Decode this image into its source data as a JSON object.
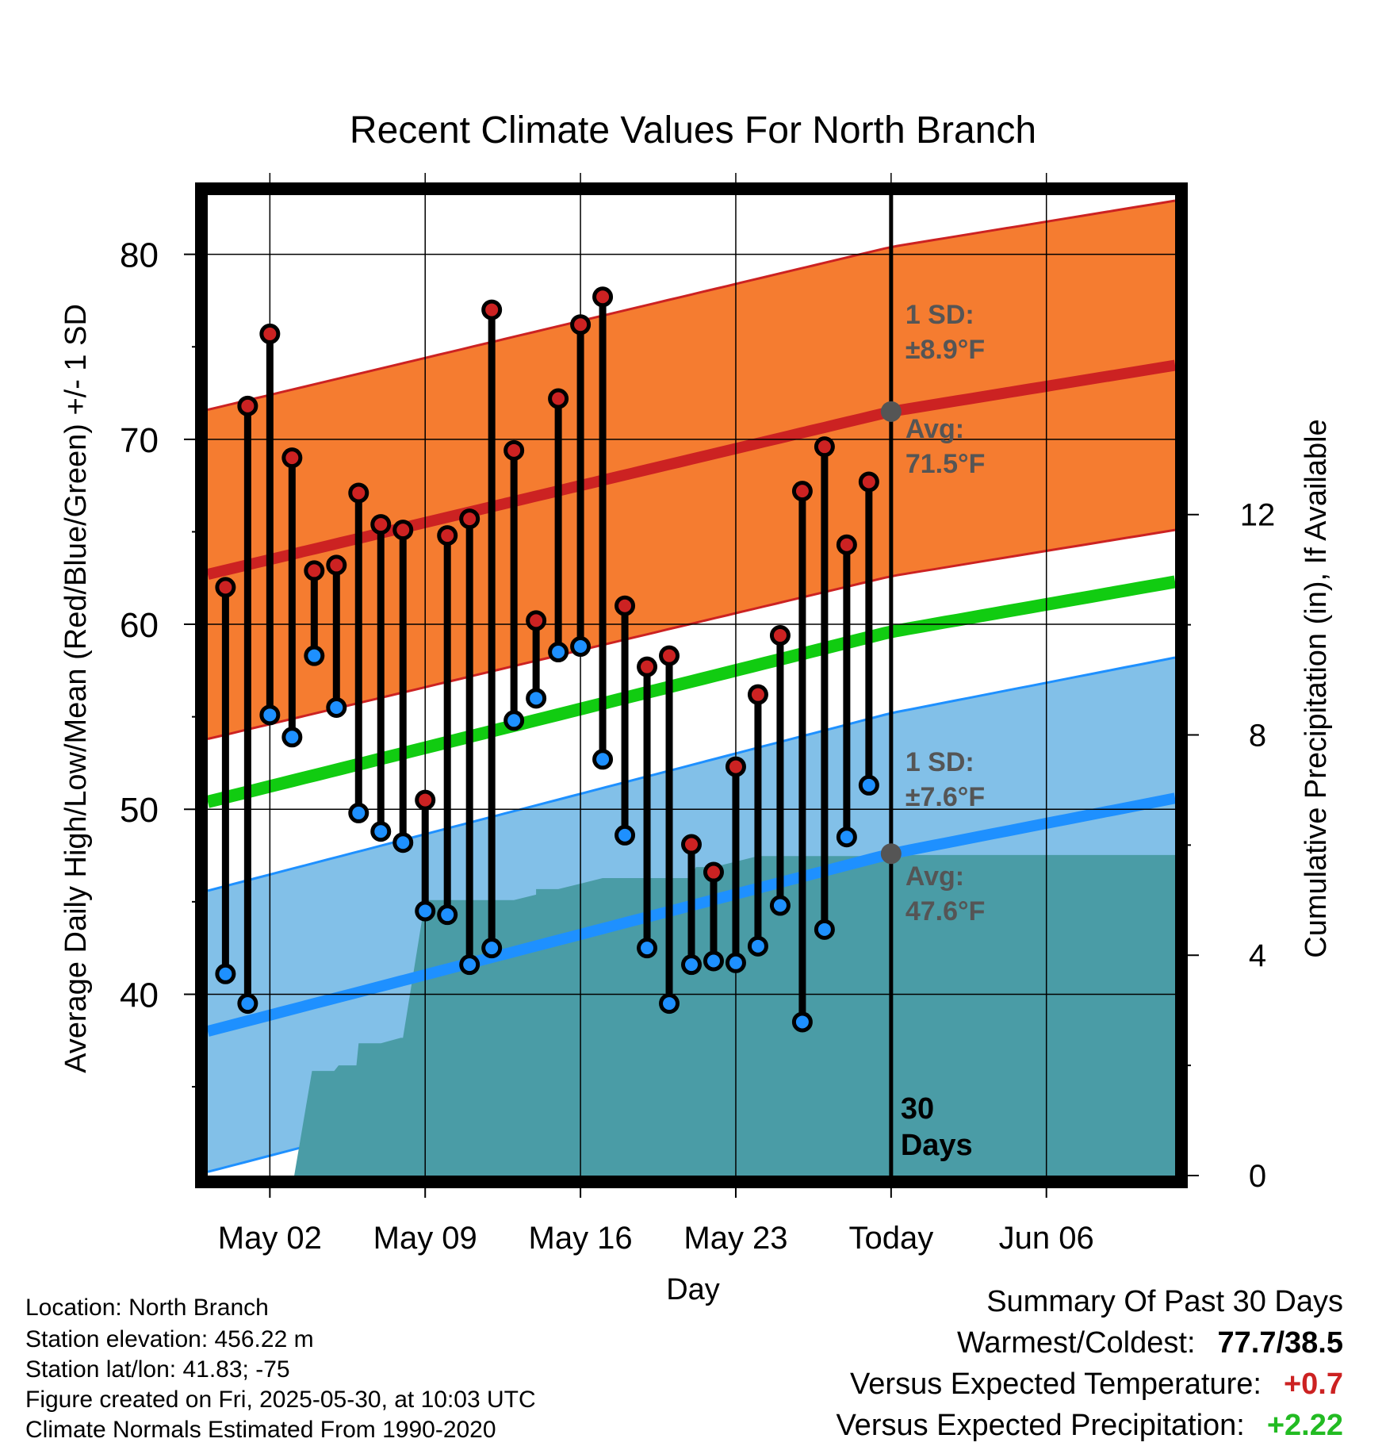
{
  "chart_data": {
    "type": "line",
    "title": "Recent Climate Values For North Branch",
    "xlabel": "Day",
    "ylabel": "Average Daily High/Low/Mean (Red/Blue/Green) +/- 1 SD",
    "y2label": "Cumulative Precipitation (in), If Available",
    "xlim": [
      -2.8,
      40.8
    ],
    "ylim": [
      30.2,
      83.2
    ],
    "y2lim": [
      0,
      17.8
    ],
    "x_ticks": [
      {
        "x": 0,
        "label": "May 02"
      },
      {
        "x": 7,
        "label": "May 09"
      },
      {
        "x": 14,
        "label": "May 16"
      },
      {
        "x": 21,
        "label": "May 23"
      },
      {
        "x": 28,
        "label": "Today"
      },
      {
        "x": 35,
        "label": "Jun 06"
      }
    ],
    "y_ticks": [
      40,
      50,
      60,
      70,
      80
    ],
    "y2_ticks": [
      0,
      4,
      8,
      12
    ],
    "today_x": 28,
    "today_label": "30 Days",
    "colors": {
      "high": "#cc2222",
      "low": "#1e90ff",
      "mean": "#11cc11",
      "high_band": "#f57c30",
      "low_band": "#82c0e8",
      "precip": "#4a9ca6"
    },
    "normal_high": {
      "x": [
        -2.8,
        28,
        40.8
      ],
      "avg": [
        62.7,
        71.5,
        74.0
      ],
      "sd": 8.9
    },
    "normal_low": {
      "x": [
        -2.8,
        28,
        40.8
      ],
      "avg": [
        38.0,
        47.6,
        50.6
      ],
      "sd": 7.6
    },
    "normal_mean": {
      "x": [
        -2.8,
        28,
        40.8
      ],
      "values": [
        50.4,
        59.6,
        62.3
      ]
    },
    "annotations": {
      "high_sd": "1 SD:",
      "high_sd_val": "±8.9°F",
      "high_avg": "Avg:",
      "high_avg_val": "71.5°F",
      "low_sd": "1 SD:",
      "low_sd_val": "±7.6°F",
      "low_avg": "Avg:",
      "low_avg_val": "47.6°F"
    },
    "series": [
      {
        "name": "High",
        "x": [
          -2,
          -1,
          0,
          1,
          2,
          3,
          4,
          5,
          6,
          7,
          8,
          9,
          10,
          11,
          12,
          13,
          14,
          15,
          16,
          17,
          18,
          19,
          20,
          21,
          22,
          23,
          24,
          25,
          26,
          27
        ],
        "values": [
          62.0,
          71.8,
          75.7,
          69.0,
          62.9,
          63.2,
          67.1,
          65.4,
          65.1,
          50.5,
          64.8,
          65.7,
          77.0,
          69.4,
          60.2,
          72.2,
          76.2,
          77.7,
          61.0,
          57.7,
          58.3,
          48.1,
          46.6,
          52.3,
          56.2,
          59.4,
          67.2,
          69.6,
          64.3,
          67.7
        ]
      },
      {
        "name": "Low",
        "x": [
          -2,
          -1,
          0,
          1,
          2,
          3,
          4,
          5,
          6,
          7,
          8,
          9,
          10,
          11,
          12,
          13,
          14,
          15,
          16,
          17,
          18,
          19,
          20,
          21,
          22,
          23,
          24,
          25,
          26,
          27
        ],
        "values": [
          41.1,
          39.5,
          55.1,
          53.9,
          58.3,
          55.5,
          49.8,
          48.8,
          48.2,
          44.5,
          44.3,
          41.6,
          42.5,
          54.8,
          56.0,
          58.5,
          58.8,
          52.7,
          48.6,
          42.5,
          39.5,
          41.6,
          41.8,
          41.7,
          42.6,
          44.8,
          38.5,
          43.5,
          48.5,
          51.3
        ]
      },
      {
        "name": "Cumulative Precipitation",
        "x": [
          1.1,
          1.9,
          2.9,
          3.1,
          3.9,
          4,
          5,
          5.9,
          6,
          7,
          8,
          9,
          10,
          11,
          12,
          12,
          13,
          14,
          15,
          16,
          17,
          19,
          19.2,
          20,
          21,
          22,
          23,
          24,
          25,
          26,
          27,
          28,
          35,
          40.8
        ],
        "values": [
          0.0,
          1.9,
          1.9,
          2.0,
          2.0,
          2.4,
          2.4,
          2.5,
          2.5,
          5.0,
          5.0,
          5.0,
          5.0,
          5.0,
          5.1,
          5.2,
          5.2,
          5.3,
          5.4,
          5.4,
          5.4,
          5.4,
          5.6,
          5.6,
          5.7,
          5.8,
          5.8,
          5.8,
          5.8,
          5.8,
          5.8,
          5.82,
          5.82,
          5.82
        ]
      }
    ]
  },
  "info": {
    "location": "Location: North Branch",
    "elevation": "Station elevation: 456.22 m",
    "latlon": "Station lat/lon: 41.83; -75",
    "created": "Figure created on Fri, 2025-05-30, at 10:03 UTC",
    "normals": "Climate Normals Estimated From 1990-2020"
  },
  "summary": {
    "title": "Summary Of Past 30 Days",
    "warm_cold_label": "Warmest/Coldest:",
    "warm_cold_value": "77.7/38.5",
    "temp_label": "Versus Expected Temperature:",
    "temp_value": "+0.7",
    "temp_color": "#cc2222",
    "precip_label": "Versus Expected Precipitation:",
    "precip_value": "+2.22",
    "precip_color": "#22bb22"
  }
}
